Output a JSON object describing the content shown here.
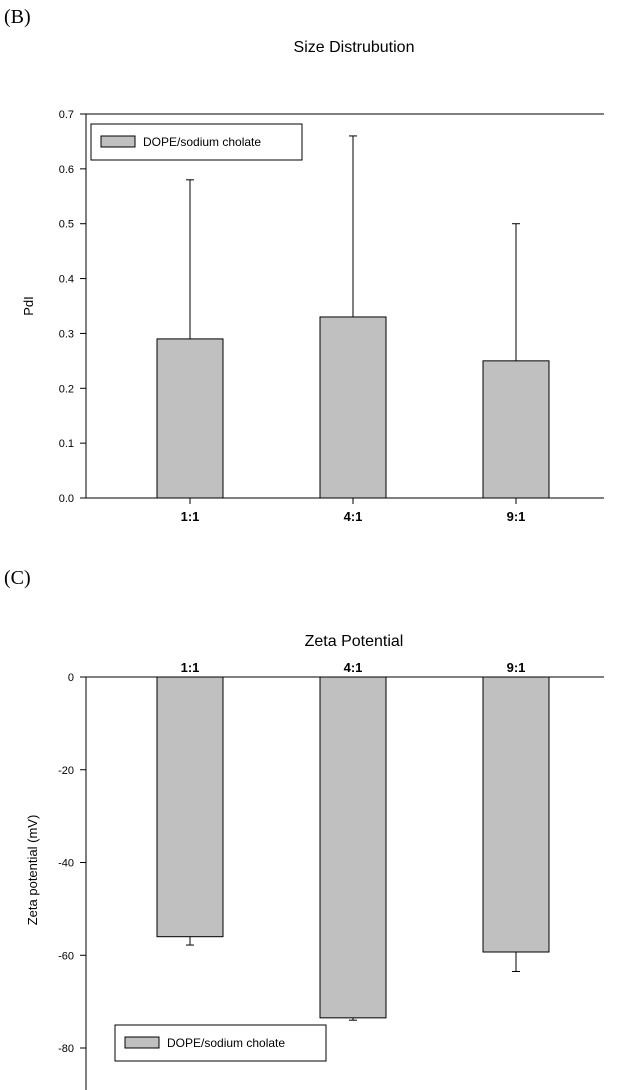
{
  "panels": {
    "b_label": "(B)",
    "c_label": "(C)"
  },
  "colors": {
    "bar_fill": "#c0c0c0",
    "stroke": "#000000"
  },
  "chart_data": [
    {
      "type": "bar",
      "title": "Size Distrubution",
      "ylabel": "PdI",
      "xlabel": "",
      "categories": [
        "1:1",
        "4:1",
        "9:1"
      ],
      "series": [
        {
          "name": "DOPE/sodium cholate",
          "values": [
            0.29,
            0.33,
            0.25
          ],
          "errors": [
            0.29,
            0.33,
            0.25
          ]
        }
      ],
      "ylim": [
        0.0,
        0.7
      ],
      "yticks": [
        "0.0",
        "0.1",
        "0.2",
        "0.3",
        "0.4",
        "0.5",
        "0.6",
        "0.7"
      ],
      "legend": "top-left",
      "grid": false,
      "error_bar_direction": "up"
    },
    {
      "type": "bar",
      "title": "Zeta Potential",
      "ylabel": "Zeta potential (mV)",
      "xlabel": "",
      "categories": [
        "1:1",
        "4:1",
        "9:1"
      ],
      "series": [
        {
          "name": "DOPE/sodium cholate",
          "values": [
            -56,
            -73.5,
            -59.3
          ],
          "errors": [
            1.8,
            0.5,
            4.2
          ]
        }
      ],
      "ylim": [
        -90,
        0
      ],
      "yticks": [
        "0",
        "-20",
        "-40",
        "-60",
        "-80"
      ],
      "legend": "bottom-left",
      "grid": false,
      "error_bar_direction": "down",
      "category_labels_position": "top"
    }
  ]
}
